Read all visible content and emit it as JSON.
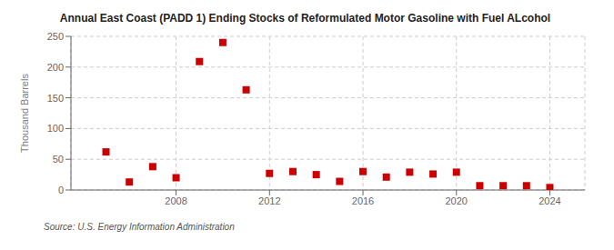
{
  "chart_data": {
    "type": "scatter",
    "title": "Annual East Coast (PADD 1) Ending Stocks of Reformulated Motor Gasoline with Fuel ALcohol",
    "ylabel": "Thousand Barrels",
    "source": "Source: U.S. Energy Information Administration",
    "x": [
      2005,
      2006,
      2007,
      2008,
      2009,
      2010,
      2011,
      2012,
      2013,
      2014,
      2015,
      2016,
      2017,
      2018,
      2019,
      2020,
      2021,
      2022,
      2023,
      2024
    ],
    "values": [
      62,
      13,
      38,
      20,
      209,
      240,
      163,
      27,
      30,
      25,
      14,
      30,
      21,
      29,
      26,
      29,
      7,
      7,
      7,
      4
    ],
    "color": "#cc0000",
    "marker": "square",
    "xlim": [
      2003.5,
      2025.5
    ],
    "xticks": [
      2008,
      2012,
      2016,
      2020,
      2024
    ],
    "ylim": [
      0,
      250
    ],
    "yticks": [
      0,
      50,
      100,
      150,
      200,
      250
    ],
    "grid": true
  }
}
